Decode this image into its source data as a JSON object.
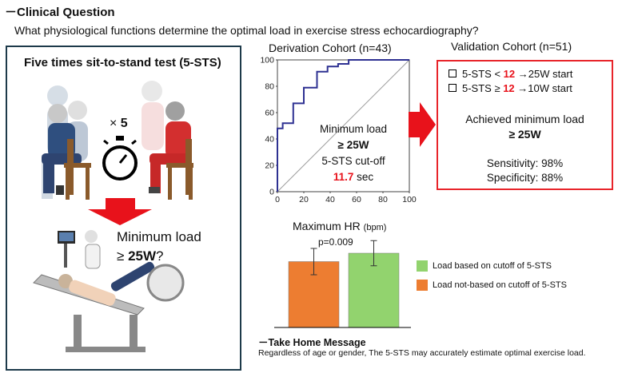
{
  "header": {
    "section_title": "－Clinical Question",
    "question": "What physiological functions determine the optimal load in exercise stress echocardiography?"
  },
  "left_panel": {
    "title": "Five times sit-to-stand test (5-STS)",
    "times_prefix": "× ",
    "times_value": "5",
    "minload_line1": "Minimum load",
    "minload_prefix": "≥ ",
    "minload_value": "25W",
    "minload_suffix": "?"
  },
  "roc": {
    "title": "Derivation Cohort (n=43)",
    "annot_line1": "Minimum load",
    "annot_line2": "≥ 25W",
    "annot_line3": "5-STS cut-off",
    "annot_value": "11.7",
    "annot_unit": " sec"
  },
  "validation": {
    "title": "Validation Cohort (n=51)",
    "crit1_pre": "5-STS < ",
    "crit1_num": "12",
    "crit1_post": " →25W start",
    "crit2_pre": "5-STS ≥ ",
    "crit2_num": "12",
    "crit2_post": " →10W start",
    "achieved_line1": "Achieved minimum load",
    "achieved_line2": "≥ 25W",
    "sensitivity": "Sensitivity: 98%",
    "specificity": "Specificity: 88%"
  },
  "hr": {
    "title": "Maximum HR",
    "unit": "(bpm)",
    "pvalue": "p=0.009"
  },
  "take_home": {
    "title": "－Take Home Message",
    "text": "Regardless of age or gender, The 5-STS may accurately estimate optimal exercise load."
  },
  "chart_data": [
    {
      "type": "line",
      "title": "Derivation Cohort (n=43)",
      "xlabel": "",
      "ylabel": "",
      "xlim": [
        0,
        100
      ],
      "ylim": [
        0,
        100
      ],
      "xticks": [
        "0",
        "20",
        "40",
        "60",
        "80",
        "100"
      ],
      "yticks": [
        "0",
        "20",
        "40",
        "60",
        "80",
        "100"
      ],
      "grid": false,
      "series": [
        {
          "color": "#2e3192",
          "x": [
            0,
            0,
            4,
            4,
            12,
            12,
            20,
            20,
            30,
            30,
            38,
            38,
            46,
            46,
            54,
            54,
            100
          ],
          "y": [
            0,
            48,
            48,
            52,
            52,
            67,
            67,
            79,
            79,
            91,
            91,
            95,
            95,
            97,
            97,
            100,
            100
          ]
        },
        {
          "color": "#9e9e9e",
          "x": [
            0,
            100
          ],
          "y": [
            0,
            100
          ]
        }
      ]
    },
    {
      "type": "bar",
      "title": "Maximum HR (bpm)",
      "pvalue": "p=0.009",
      "categories": [
        "Load not-based on cutoff of 5-STS",
        "Load based on cutoff of 5-STS"
      ],
      "values": [
        110,
        124
      ],
      "errors": [
        22,
        21
      ],
      "colors": [
        "#ed7d31",
        "#92d36e"
      ],
      "ylim": [
        0,
        160
      ],
      "legend": "right",
      "legend_entries": [
        "Load based on cutoff of 5-STS",
        "Load not-based on cutoff of 5-STS"
      ]
    }
  ]
}
